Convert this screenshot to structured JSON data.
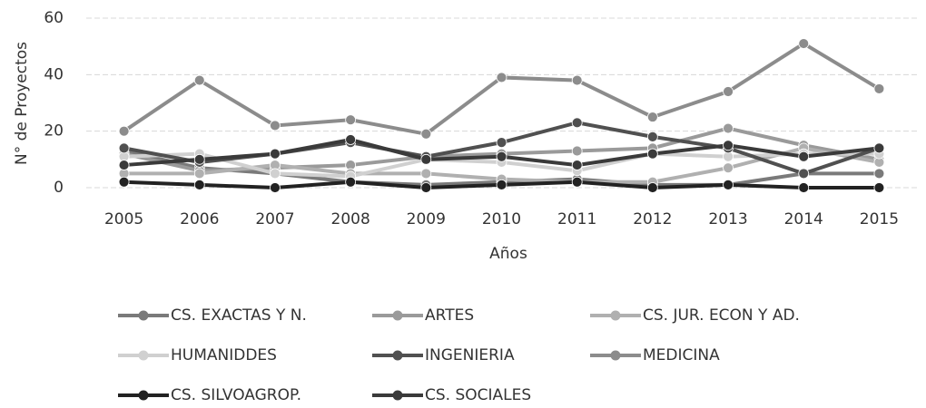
{
  "chart_data": {
    "type": "line",
    "x_label": "Años",
    "y_label": "N° de Proyectos",
    "categories": [
      "2005",
      "2006",
      "2007",
      "2008",
      "2009",
      "2010",
      "2011",
      "2012",
      "2013",
      "2014",
      "2015"
    ],
    "ylim": [
      0,
      60
    ],
    "yticks": [
      0,
      20,
      40,
      60
    ],
    "grid": true,
    "legend": "bottom",
    "series": [
      {
        "name": "CS. EXACTAS Y N.",
        "color": "#7a7a7a",
        "values": [
          13,
          7,
          5,
          2,
          1,
          2,
          3,
          1,
          1,
          5,
          5
        ]
      },
      {
        "name": "ARTES",
        "color": "#9a9a9a",
        "values": [
          12,
          6,
          7,
          8,
          11,
          12,
          13,
          14,
          21,
          15,
          10
        ]
      },
      {
        "name": "CS. JUR. ECON Y AD.",
        "color": "#b0b0b0",
        "values": [
          5,
          5,
          8,
          5,
          5,
          3,
          2,
          2,
          7,
          14,
          9
        ]
      },
      {
        "name": "HUMANIDDES",
        "color": "#d0d0d0",
        "values": [
          11,
          12,
          5,
          4,
          10,
          9,
          6,
          12,
          11,
          12,
          12
        ]
      },
      {
        "name": "INGENIERIA",
        "color": "#505050",
        "values": [
          14,
          9,
          12,
          16,
          11,
          16,
          23,
          18,
          14,
          5,
          14
        ]
      },
      {
        "name": "MEDICINA",
        "color": "#8c8c8c",
        "values": [
          20,
          38,
          22,
          24,
          19,
          39,
          38,
          25,
          34,
          51,
          35
        ]
      },
      {
        "name": "CS. SILVOAGROP.",
        "color": "#222222",
        "values": [
          2,
          1,
          0,
          2,
          0,
          1,
          2,
          0,
          1,
          0,
          0
        ]
      },
      {
        "name": "CS. SOCIALES",
        "color": "#3a3a3a",
        "values": [
          8,
          10,
          12,
          17,
          10,
          11,
          8,
          12,
          15,
          11,
          14
        ]
      }
    ]
  }
}
